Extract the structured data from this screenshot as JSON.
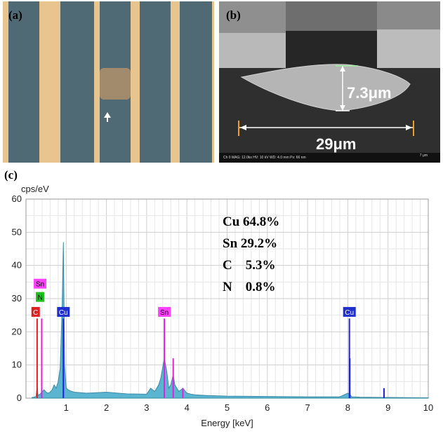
{
  "panels": {
    "a": {
      "label": "(a)"
    },
    "b": {
      "label": "(b)",
      "height_label": "7.3μm",
      "width_label": "29μm",
      "sem_info": "Ch 0   MAG: 12.0kx   HV: 10 kV   WD: 4.0 mm   Px: 66 nm",
      "scale_label": "7 μm"
    },
    "c": {
      "label": "(c)"
    }
  },
  "chart_data": {
    "type": "area",
    "y_unit": "cps/eV",
    "xlabel": "Energy [keV]",
    "ylabel": "",
    "xlim": [
      0,
      10
    ],
    "ylim": [
      0,
      60
    ],
    "x_ticks": [
      1,
      2,
      3,
      4,
      5,
      6,
      7,
      8,
      9,
      10
    ],
    "y_ticks": [
      0,
      10,
      20,
      30,
      40,
      50,
      60
    ],
    "grid": true,
    "series": [
      {
        "x": [
          0.15,
          0.2,
          0.25,
          0.277,
          0.3,
          0.35,
          0.392,
          0.45,
          0.5,
          0.55,
          0.6,
          0.65,
          0.7,
          0.75,
          0.8,
          0.85,
          0.9,
          0.93,
          0.96,
          1.0,
          1.05,
          1.1,
          1.2,
          1.5,
          2.0,
          2.5,
          3.0,
          3.1,
          3.2,
          3.3,
          3.35,
          3.44,
          3.5,
          3.55,
          3.6,
          3.66,
          3.7,
          3.8,
          3.9,
          4.0,
          4.1,
          4.2,
          4.5,
          5.0,
          6.0,
          7.0,
          7.8,
          8.0,
          8.04,
          8.1,
          8.3,
          8.9,
          9.0,
          10.0
        ],
        "values": [
          0.2,
          0.3,
          0.5,
          3.5,
          0.8,
          1.2,
          1.8,
          2.5,
          1.8,
          1.5,
          1.8,
          2.5,
          4,
          3,
          5,
          9,
          28,
          47,
          10,
          3,
          2.5,
          2.2,
          1.8,
          1.5,
          1.8,
          1.3,
          1.2,
          3,
          2,
          4,
          6,
          12,
          8,
          3,
          4,
          7,
          4,
          2,
          3,
          1.5,
          1.2,
          1,
          0.8,
          0.6,
          0.5,
          0.4,
          0.4,
          1.5,
          1.2,
          0.4,
          0.3,
          0.2,
          0.2,
          0.1
        ]
      }
    ],
    "peak_lines": [
      {
        "x": 0.277,
        "y": 24,
        "color": "#e02020"
      },
      {
        "x": 0.392,
        "y": 24,
        "color": "#e020e0"
      },
      {
        "x": 0.93,
        "y": 24,
        "color": "#2020e0"
      },
      {
        "x": 3.44,
        "y": 24,
        "color": "#e020e0"
      },
      {
        "x": 3.66,
        "y": 12,
        "color": "#e020e0"
      },
      {
        "x": 3.9,
        "y": 3,
        "color": "#e020e0"
      },
      {
        "x": 8.04,
        "y": 24,
        "color": "#2020e0"
      },
      {
        "x": 8.05,
        "y": 12,
        "color": "#2020e0"
      },
      {
        "x": 8.9,
        "y": 3,
        "color": "#2020e0"
      }
    ],
    "element_markers": [
      {
        "symbol": "Sn",
        "x": 0.35,
        "y": 34.5,
        "fill": "#ff40ff",
        "text_color": "#000000"
      },
      {
        "symbol": "N",
        "x": 0.35,
        "y": 30.5,
        "fill": "#20c020",
        "text_color": "#000000"
      },
      {
        "symbol": "C",
        "x": 0.24,
        "y": 26,
        "fill": "#e02020",
        "text_color": "#ffffff"
      },
      {
        "symbol": "Cu",
        "x": 0.93,
        "y": 26,
        "fill": "#2030d0",
        "text_color": "#ffffff"
      },
      {
        "symbol": "Sn",
        "x": 3.44,
        "y": 26,
        "fill": "#ff40ff",
        "text_color": "#000000"
      },
      {
        "symbol": "Cu",
        "x": 8.04,
        "y": 26,
        "fill": "#2030d0",
        "text_color": "#ffffff"
      }
    ],
    "composition": [
      "Cu 64.8%",
      "Sn 29.2%",
      "C    5.3%",
      "N    0.8%"
    ],
    "colors": {
      "spectrum_fill": "#5bb5d0",
      "spectrum_stroke": "#3a8aa8",
      "grid": "#d8d8d8"
    }
  }
}
